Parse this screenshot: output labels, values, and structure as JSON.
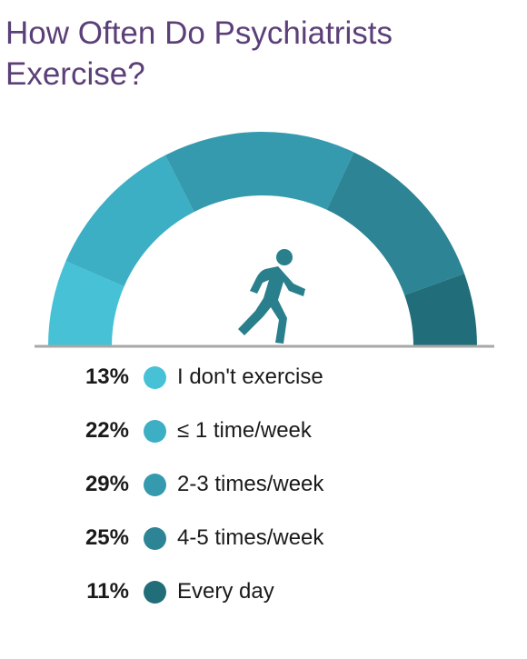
{
  "title": "How Often Do Psychiatrists Exercise?",
  "chart_data": {
    "type": "pie",
    "shape": "semi-donut",
    "series": [
      {
        "label": "I don't exercise",
        "value": 13,
        "display": "13%",
        "color": "#46c1d6"
      },
      {
        "label": "≤ 1 time/week",
        "value": 22,
        "display": "22%",
        "color": "#3cafc4"
      },
      {
        "label": "2-3 times/week",
        "value": 29,
        "display": "29%",
        "color": "#369aae"
      },
      {
        "label": "4-5 times/week",
        "value": 25,
        "display": "25%",
        "color": "#2c8494"
      },
      {
        "label": "Every day",
        "value": 11,
        "display": "11%",
        "color": "#216d79"
      }
    ]
  },
  "icon": "running-person-icon",
  "baseline_color": "#a8a8a8"
}
